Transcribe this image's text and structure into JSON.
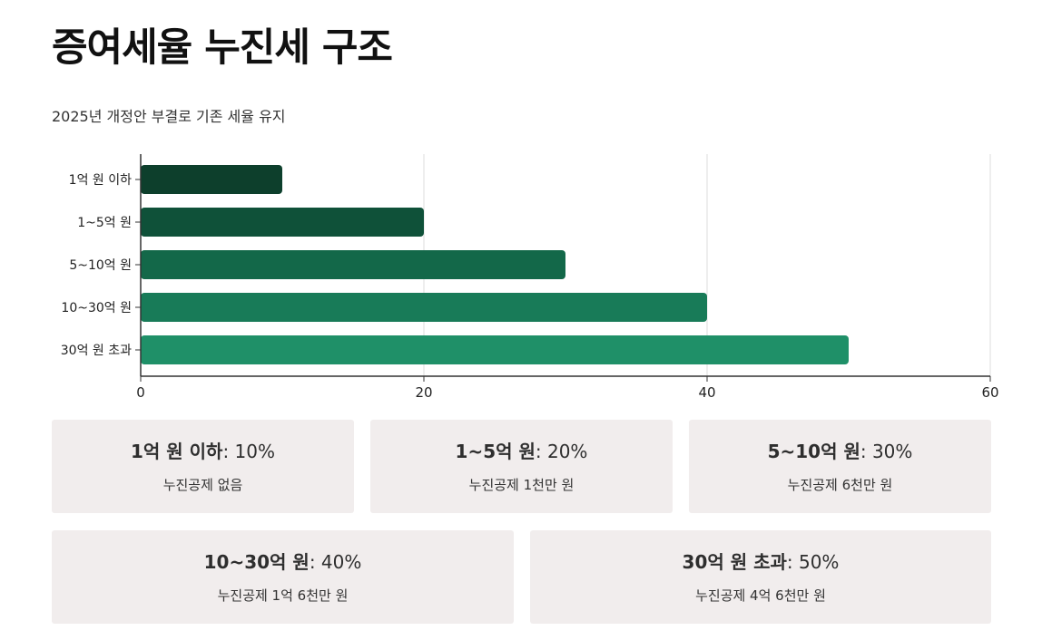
{
  "header": {
    "title": "증여세율 누진세 구조",
    "subtitle": "2025년 개정안 부결로 기존 세율 유지"
  },
  "chart_data": {
    "type": "bar",
    "orientation": "horizontal",
    "categories": [
      "1억 원 이하",
      "1~5억 원",
      "5~10억 원",
      "10~30억 원",
      "30억 원 초과"
    ],
    "values": [
      10,
      20,
      30,
      40,
      50
    ],
    "xlim": [
      0,
      60
    ],
    "xticks": [
      "0",
      "20",
      "40",
      "60"
    ],
    "grid": true,
    "colors": [
      "#0d3f2c",
      "#0f5139",
      "#136849",
      "#187b58",
      "#1f9068"
    ]
  },
  "cards": [
    {
      "label": "1억 원 이하",
      "rate": ": 10%",
      "desc": "누진공제 없음"
    },
    {
      "label": "1~5억 원",
      "rate": ": 20%",
      "desc": "누진공제 1천만 원"
    },
    {
      "label": "5~10억 원",
      "rate": ": 30%",
      "desc": "누진공제 6천만 원"
    },
    {
      "label": "10~30억 원",
      "rate": ": 40%",
      "desc": "누진공제 1억 6천만 원"
    },
    {
      "label": "30억 원 초과",
      "rate": ": 50%",
      "desc": "누진공제 4억 6천만 원"
    }
  ]
}
